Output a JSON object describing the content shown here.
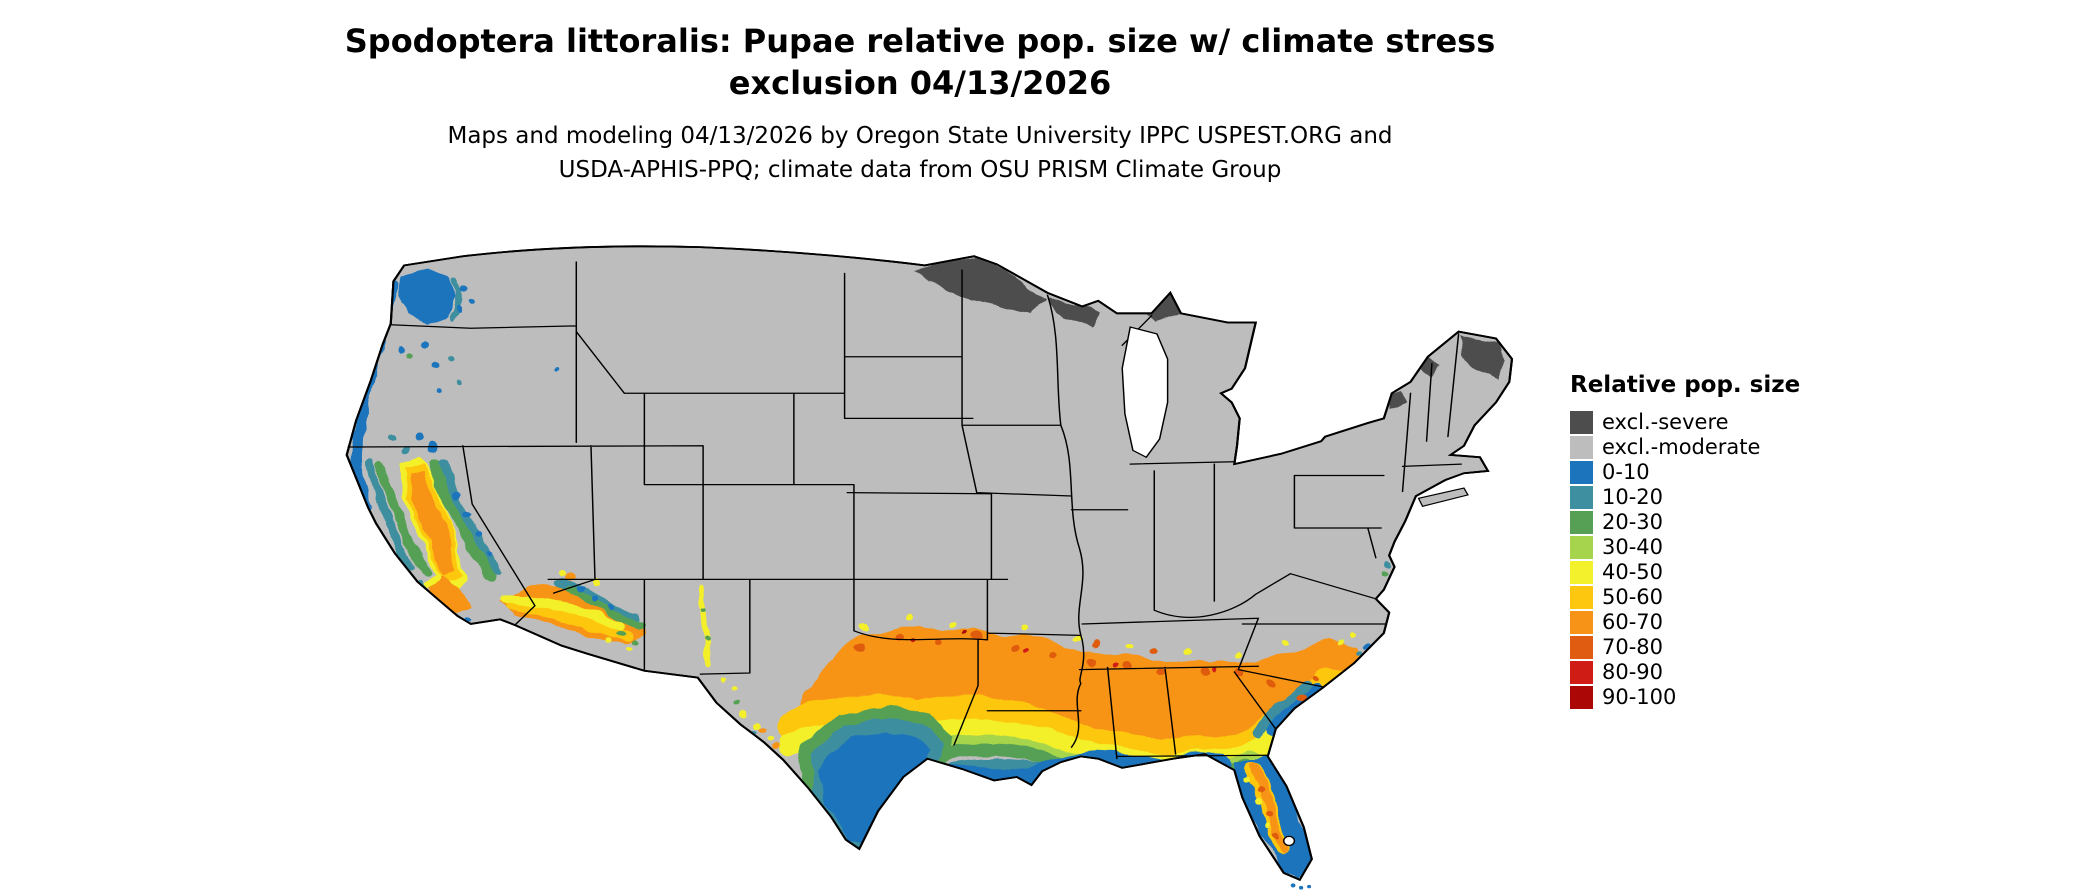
{
  "header": {
    "title_line1": "Spodoptera littoralis: Pupae relative pop. size w/ climate stress",
    "title_line2": "exclusion 04/13/2026",
    "subtitle_line1": "Maps and modeling 04/13/2026 by Oregon State University IPPC USPEST.ORG and",
    "subtitle_line2": "USDA-APHIS-PPQ; climate data from OSU PRISM Climate Group"
  },
  "legend": {
    "title": "Relative pop. size",
    "items": [
      {
        "label": "excl.-severe",
        "color": "#4d4d4d"
      },
      {
        "label": "excl.-moderate",
        "color": "#bdbdbd"
      },
      {
        "label": "0-10",
        "color": "#1c75bc"
      },
      {
        "label": "10-20",
        "color": "#3e8fa0"
      },
      {
        "label": "20-30",
        "color": "#55a054"
      },
      {
        "label": "30-40",
        "color": "#a6d44c"
      },
      {
        "label": "40-50",
        "color": "#f3f02c"
      },
      {
        "label": "50-60",
        "color": "#fdc70f"
      },
      {
        "label": "60-70",
        "color": "#f79417"
      },
      {
        "label": "70-80",
        "color": "#e05c10"
      },
      {
        "label": "80-90",
        "color": "#cf1c14"
      },
      {
        "label": "90-100",
        "color": "#ab0707"
      }
    ]
  },
  "map": {
    "area": "Conterminous United States",
    "background": "#ffffff",
    "state_border_color": "#000000"
  }
}
